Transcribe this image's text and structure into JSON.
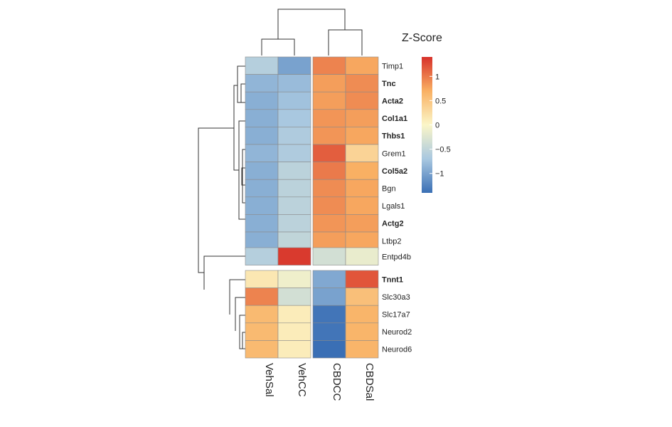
{
  "chart_data": {
    "type": "heatmap",
    "legend_title": "Z-Score",
    "legend_ticks": [
      {
        "value": 1,
        "label": "1"
      },
      {
        "value": 0.5,
        "label": "0.5"
      },
      {
        "value": 0,
        "label": "0"
      },
      {
        "value": -0.5,
        "label": "−0.5"
      },
      {
        "value": -1,
        "label": "−1"
      }
    ],
    "value_range": [
      -1.4,
      1.4
    ],
    "colors": {
      "low": "#3a6fb5",
      "mid": "#fbf6c8",
      "high": "#d7312a"
    },
    "columns": [
      "VehSal",
      "VehCC",
      "CBDCC",
      "CBDSal"
    ],
    "rows": [
      {
        "gene": "Timp1",
        "bold": false,
        "values": [
          -0.6,
          -1.0,
          0.95,
          0.75
        ]
      },
      {
        "gene": "Tnc",
        "bold": true,
        "values": [
          -0.85,
          -0.8,
          0.8,
          0.9
        ]
      },
      {
        "gene": "Acta2",
        "bold": true,
        "values": [
          -0.9,
          -0.75,
          0.8,
          0.9
        ]
      },
      {
        "gene": "Col1a1",
        "bold": true,
        "values": [
          -0.9,
          -0.7,
          0.85,
          0.8
        ]
      },
      {
        "gene": "Thbs1",
        "bold": true,
        "values": [
          -0.9,
          -0.65,
          0.85,
          0.75
        ]
      },
      {
        "gene": "Grem1",
        "bold": false,
        "values": [
          -0.85,
          -0.65,
          1.15,
          0.35
        ]
      },
      {
        "gene": "Col5a2",
        "bold": true,
        "values": [
          -0.9,
          -0.55,
          1.0,
          0.7
        ]
      },
      {
        "gene": "Bgn",
        "bold": false,
        "values": [
          -0.9,
          -0.55,
          0.9,
          0.75
        ]
      },
      {
        "gene": "Lgals1",
        "bold": false,
        "values": [
          -0.9,
          -0.55,
          0.9,
          0.75
        ]
      },
      {
        "gene": "Actg2",
        "bold": true,
        "values": [
          -0.9,
          -0.55,
          0.85,
          0.8
        ]
      },
      {
        "gene": "Ltbp2",
        "bold": false,
        "values": [
          -0.9,
          -0.5,
          0.8,
          0.75
        ]
      },
      {
        "gene": "Entpd4b",
        "bold": false,
        "values": [
          -0.6,
          1.35,
          -0.35,
          -0.15
        ]
      },
      {
        "gene": "Tnnt1",
        "bold": true,
        "values": [
          0.15,
          -0.1,
          -0.95,
          1.2
        ]
      },
      {
        "gene": "Slc30a3",
        "bold": false,
        "values": [
          0.95,
          -0.35,
          -1.0,
          0.55
        ]
      },
      {
        "gene": "Slc17a7",
        "bold": false,
        "values": [
          0.6,
          0.1,
          -1.35,
          0.65
        ]
      },
      {
        "gene": "Neurod2",
        "bold": false,
        "values": [
          0.6,
          0.1,
          -1.35,
          0.65
        ]
      },
      {
        "gene": "Neurod6",
        "bold": false,
        "values": [
          0.6,
          0.1,
          -1.4,
          0.65
        ]
      }
    ]
  }
}
